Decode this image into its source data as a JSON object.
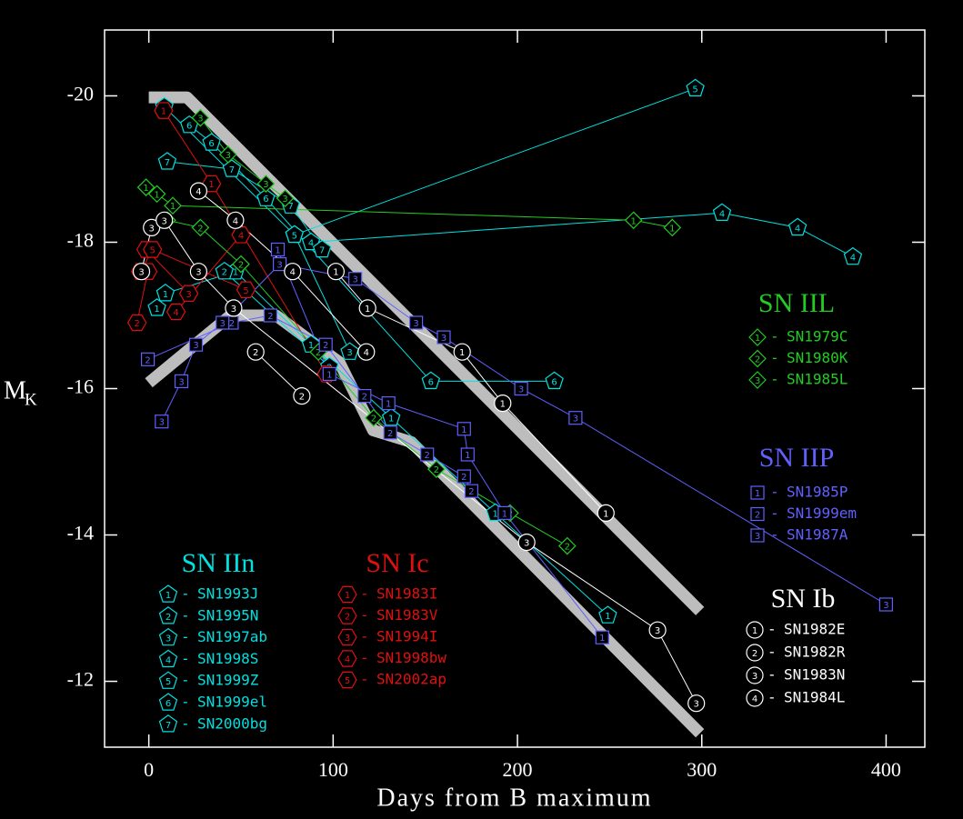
{
  "chart_data": {
    "type": "scatter",
    "x_label": "Days from B maximum",
    "y_label": "M",
    "y_label_sub": "K",
    "xlim": [
      -24,
      421
    ],
    "ylim": [
      -11.1,
      -20.9
    ],
    "xticks": [
      0,
      100,
      200,
      300,
      400
    ],
    "yticks": [
      -20,
      -18,
      -16,
      -14,
      -12
    ],
    "legend_separator": "-",
    "band_color": "#bdbdbd",
    "bands": [
      {
        "x": [
          0,
          20.7,
          299
        ],
        "values": [
          -19.98,
          -19.98,
          -12.96
        ]
      },
      {
        "x": [
          0,
          44.3,
          69,
          103.4,
          121.7,
          142.4,
          299
        ],
        "values": [
          -16.08,
          -17.0,
          -17.0,
          -16.36,
          -15.43,
          -15.27,
          -11.29
        ]
      }
    ],
    "groups": [
      {
        "title": "SN IIn",
        "color": "#00e0e0",
        "marker": "pentagon",
        "series": [
          {
            "name": "SN1993J",
            "marker_label": "1",
            "x": [
              4.4,
              9,
              47,
              88,
              131.5,
              188,
              249
            ],
            "values": [
              -17.1,
              -17.3,
              -17.6,
              -16.6,
              -15.6,
              -14.3,
              -12.9
            ]
          },
          {
            "name": "SN1995N",
            "marker_label": "2",
            "x": [
              41,
              98
            ],
            "values": [
              -17.6,
              -16.3
            ]
          },
          {
            "name": "SN1997ab",
            "marker_label": "3",
            "x": [
              79,
              109
            ],
            "values": [
              -18.1,
              -16.5
            ]
          },
          {
            "name": "SN1998S",
            "marker_label": "4",
            "x": [
              88,
              311,
              352,
              382
            ],
            "values": [
              -18.0,
              -18.4,
              -18.2,
              -17.8
            ]
          },
          {
            "name": "SN1999Z",
            "marker_label": "5",
            "x": [
              8.4,
              79,
              296.5
            ],
            "values": [
              -19.85,
              -18.1,
              -20.1
            ]
          },
          {
            "name": "SN1999el",
            "marker_label": "6",
            "x": [
              22,
              34,
              63.5,
              153,
              220
            ],
            "values": [
              -19.6,
              -19.36,
              -18.6,
              -16.1,
              -16.1
            ]
          },
          {
            "name": "SN2000bg",
            "marker_label": "7",
            "x": [
              10,
              45,
              77,
              94
            ],
            "values": [
              -19.1,
              -19.0,
              -18.5,
              -17.9
            ]
          }
        ]
      },
      {
        "title": "SN Ic",
        "color": "#e01010",
        "marker": "hexagon",
        "series": [
          {
            "name": "SN1983I",
            "marker_label": "1",
            "x": [
              8,
              34,
              96.5
            ],
            "values": [
              -19.8,
              -18.8,
              -16.2
            ]
          },
          {
            "name": "SN1983V",
            "marker_label": "2",
            "x": [
              -6.4,
              -0.5
            ],
            "values": [
              -16.9,
              -17.6
            ]
          },
          {
            "name": "SN1994I",
            "marker_label": "3",
            "x": [
              -1.5,
              21.7
            ],
            "values": [
              -17.9,
              -17.3
            ]
          },
          {
            "name": "SN1998bw",
            "marker_label": "4",
            "x": [
              14.8,
              50
            ],
            "values": [
              -17.05,
              -18.1
            ]
          },
          {
            "name": "SN2002ap",
            "marker_label": "5",
            "x": [
              -4.4,
              2,
              52.7
            ],
            "values": [
              -17.6,
              -17.9,
              -17.35
            ]
          }
        ]
      },
      {
        "title": "SN IIL",
        "color": "#22cc22",
        "marker": "diamond",
        "series": [
          {
            "name": "SN1979C",
            "marker_label": "1",
            "x": [
              -1.5,
              4.4,
              13,
              263,
              284
            ],
            "values": [
              -18.75,
              -18.66,
              -18.5,
              -18.3,
              -18.2
            ]
          },
          {
            "name": "SN1980K",
            "marker_label": "2",
            "x": [
              10,
              28,
              50,
              92,
              122,
              156,
              196,
              227
            ],
            "values": [
              -18.3,
              -18.2,
              -17.7,
              -16.5,
              -15.6,
              -14.9,
              -14.3,
              -13.85
            ]
          },
          {
            "name": "SN1985L",
            "marker_label": "3",
            "x": [
              28,
              43,
              63.5,
              74
            ],
            "values": [
              -19.7,
              -19.2,
              -18.8,
              -18.6
            ]
          }
        ]
      },
      {
        "title": "SN IIP",
        "color": "#6060ff",
        "marker": "square",
        "series": [
          {
            "name": "SN1985P",
            "marker_label": "1",
            "x": [
              70,
              98,
              130,
              171,
              173,
              193,
              246
            ],
            "values": [
              -17.9,
              -16.2,
              -15.8,
              -15.45,
              -15.1,
              -14.3,
              -12.6
            ]
          },
          {
            "name": "SN1999em",
            "marker_label": "2",
            "x": [
              -0.5,
              45,
              66,
              96,
              117,
              131,
              151,
              171,
              175
            ],
            "values": [
              -16.4,
              -16.9,
              -17.0,
              -16.6,
              -15.9,
              -15.4,
              -15.1,
              -14.8,
              -14.6
            ]
          },
          {
            "name": "SN1987A",
            "marker_label": "3",
            "x": [
              7,
              17.7,
              25.6,
              40,
              71,
              112,
              145,
              160,
              202,
              231.5,
              400
            ],
            "values": [
              -15.55,
              -16.1,
              -16.6,
              -16.9,
              -17.7,
              -17.5,
              -16.9,
              -16.7,
              -16.0,
              -15.6,
              -13.05
            ]
          }
        ]
      },
      {
        "title": "SN Ib",
        "color": "#ffffff",
        "marker": "circle",
        "series": [
          {
            "name": "SN1982E",
            "marker_label": "1",
            "x": [
              101.5,
              118.7,
              170,
              192,
              248
            ],
            "values": [
              -17.6,
              -17.1,
              -16.5,
              -15.8,
              -14.3
            ]
          },
          {
            "name": "SN1982R",
            "marker_label": "2",
            "x": [
              58,
              83
            ],
            "values": [
              -16.5,
              -15.9
            ]
          },
          {
            "name": "SN1983N",
            "marker_label": "3",
            "x": [
              -4,
              1.5,
              8.4,
              27,
              46,
              205,
              276,
              297
            ],
            "values": [
              -17.6,
              -18.2,
              -18.3,
              -17.6,
              -17.1,
              -13.9,
              -12.7,
              -11.7
            ]
          },
          {
            "name": "SN1984L",
            "marker_label": "4",
            "x": [
              27,
              47,
              78,
              118
            ],
            "values": [
              -18.7,
              -18.3,
              -17.6,
              -16.5
            ]
          }
        ]
      }
    ]
  }
}
